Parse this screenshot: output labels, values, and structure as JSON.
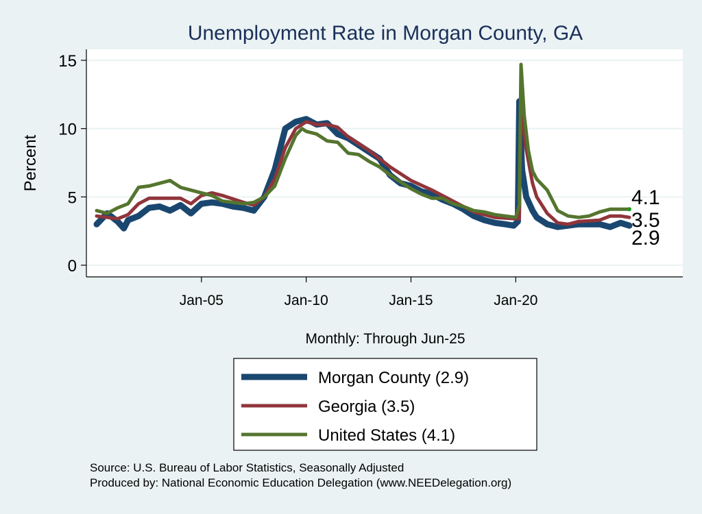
{
  "chart_data": {
    "type": "line",
    "title": "Unemployment Rate in Morgan  County, GA",
    "xlabel": "Monthly: Through Jun-25",
    "ylabel": "Percent",
    "xlim": [
      2000,
      2025.42
    ],
    "ylim": [
      0,
      15
    ],
    "grid": true,
    "yticks": [
      {
        "v": 0,
        "label": "0"
      },
      {
        "v": 5,
        "label": "5"
      },
      {
        "v": 10,
        "label": "10"
      },
      {
        "v": 15,
        "label": "15"
      }
    ],
    "xticks": [
      {
        "v": 2005,
        "label": "Jan-05"
      },
      {
        "v": 2010,
        "label": "Jan-10"
      },
      {
        "v": 2015,
        "label": "Jan-15"
      },
      {
        "v": 2020,
        "label": "Jan-20"
      }
    ],
    "legend_placement": "bottom",
    "series": [
      {
        "name": "Morgan  County",
        "legend": "Morgan  County (2.9)",
        "color": "#1a476f",
        "last_label": "2.9",
        "x": [
          2000,
          2000.5,
          2001,
          2001.3,
          2001.5,
          2002,
          2002.5,
          2003,
          2003.5,
          2004,
          2004.5,
          2005,
          2005.5,
          2006,
          2006.5,
          2007,
          2007.5,
          2008,
          2008.5,
          2009,
          2009.5,
          2010,
          2010.5,
          2011,
          2011.5,
          2012,
          2012.5,
          2013,
          2013.5,
          2014,
          2014.5,
          2015,
          2015.5,
          2016,
          2016.5,
          2017,
          2017.5,
          2018,
          2018.5,
          2019,
          2019.5,
          2019.9,
          2020.1,
          2020.17,
          2020.3,
          2020.5,
          2020.8,
          2021,
          2021.5,
          2022,
          2022.5,
          2023,
          2023.5,
          2024,
          2024.5,
          2025,
          2025.42
        ],
        "y": [
          3.0,
          3.8,
          3.2,
          2.7,
          3.3,
          3.6,
          4.2,
          4.3,
          4.0,
          4.4,
          3.8,
          4.5,
          4.6,
          4.5,
          4.3,
          4.2,
          4.0,
          5.0,
          7.0,
          10.0,
          10.5,
          10.7,
          10.3,
          10.4,
          9.6,
          9.3,
          8.8,
          8.3,
          7.8,
          6.6,
          6.0,
          5.8,
          5.4,
          5.2,
          4.8,
          4.5,
          4.1,
          3.6,
          3.3,
          3.1,
          3.0,
          2.9,
          3.2,
          12.0,
          7.0,
          5.0,
          4.0,
          3.5,
          3.0,
          2.8,
          2.9,
          3.0,
          3.0,
          3.0,
          2.8,
          3.1,
          2.9
        ]
      },
      {
        "name": "Georgia",
        "legend": "Georgia (3.5)",
        "color": "#90353b",
        "last_label": "3.5",
        "x": [
          2000,
          2001,
          2001.5,
          2002,
          2002.5,
          2003,
          2004,
          2004.5,
          2005,
          2005.5,
          2006,
          2007,
          2007.5,
          2008,
          2008.5,
          2009,
          2009.5,
          2010,
          2010.5,
          2011,
          2011.5,
          2012,
          2013,
          2014,
          2015,
          2016,
          2017,
          2018,
          2019,
          2020,
          2020.17,
          2020.25,
          2020.5,
          2020.8,
          2021,
          2021.5,
          2022,
          2022.5,
          2023,
          2024,
          2024.5,
          2025,
          2025.42
        ],
        "y": [
          3.6,
          3.4,
          3.7,
          4.5,
          4.9,
          4.9,
          4.9,
          4.5,
          5.1,
          5.3,
          5.1,
          4.6,
          4.4,
          5.0,
          6.3,
          8.6,
          10.0,
          10.5,
          10.3,
          10.3,
          10.1,
          9.4,
          8.4,
          7.2,
          6.2,
          5.5,
          4.7,
          3.9,
          3.5,
          3.4,
          3.4,
          11.5,
          8.5,
          6.0,
          5.0,
          3.8,
          3.1,
          3.0,
          3.2,
          3.3,
          3.6,
          3.6,
          3.5
        ]
      },
      {
        "name": "United States",
        "legend": "United States (4.1)",
        "color": "#55752f",
        "last_label": "4.1",
        "x": [
          2000,
          2000.5,
          2001,
          2001.5,
          2002,
          2002.5,
          2003,
          2003.5,
          2004,
          2004.5,
          2005,
          2005.5,
          2006,
          2006.5,
          2007,
          2007.5,
          2008,
          2008.5,
          2009,
          2009.5,
          2009.8,
          2010,
          2010.5,
          2011,
          2011.5,
          2012,
          2012.5,
          2013,
          2013.5,
          2014,
          2014.5,
          2015,
          2015.5,
          2016,
          2016.5,
          2017,
          2017.5,
          2018,
          2018.5,
          2019,
          2019.5,
          2020,
          2020.17,
          2020.25,
          2020.4,
          2020.6,
          2020.8,
          2021,
          2021.5,
          2022,
          2022.5,
          2023,
          2023.5,
          2024,
          2024.5,
          2025,
          2025.42
        ],
        "y": [
          4.0,
          3.8,
          4.2,
          4.5,
          5.7,
          5.8,
          6.0,
          6.2,
          5.7,
          5.5,
          5.3,
          5.1,
          4.7,
          4.6,
          4.5,
          4.6,
          5.0,
          5.8,
          7.8,
          9.5,
          10.0,
          9.8,
          9.6,
          9.1,
          9.0,
          8.2,
          8.1,
          7.6,
          7.2,
          6.6,
          6.1,
          5.6,
          5.2,
          4.9,
          4.9,
          4.5,
          4.3,
          4.0,
          3.9,
          3.7,
          3.6,
          3.5,
          4.4,
          14.7,
          11.0,
          8.4,
          6.9,
          6.3,
          5.5,
          4.0,
          3.6,
          3.5,
          3.6,
          3.9,
          4.1,
          4.1,
          4.1
        ]
      }
    ]
  },
  "notes": {
    "source": "Source: U.S. Bureau of Labor Statistics, Seasonally Adjusted",
    "produced": "Produced by: National Economic Education Delegation (www.NEEDelegation.org)"
  }
}
